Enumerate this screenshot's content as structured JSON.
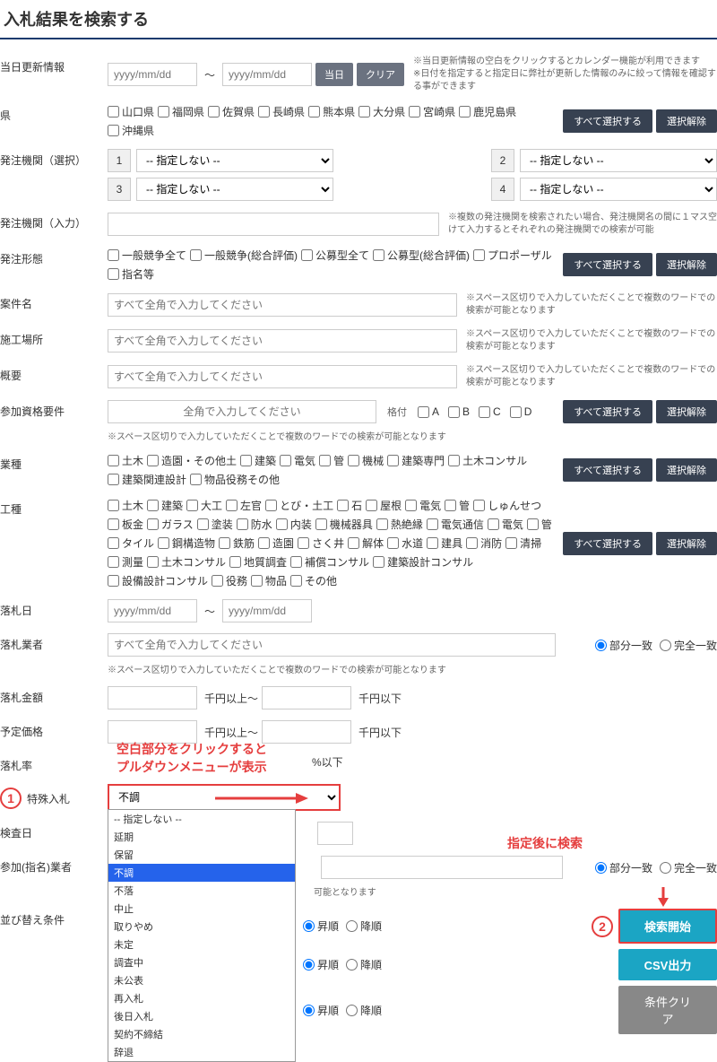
{
  "title": "入札結果を検索する",
  "rows": {
    "updateInfo": {
      "label": "当日更新情報",
      "placeholder": "yyyy/mm/dd",
      "btnToday": "当日",
      "btnClear": "クリア",
      "hint": "※当日更新情報の空白をクリックするとカレンダー機能が利用できます\n※日付を指定すると指定日に弊社が更新した情報のみに絞って情報を確認する事ができます"
    },
    "pref": {
      "label": "県",
      "options": [
        "山口県",
        "福岡県",
        "佐賀県",
        "長崎県",
        "熊本県",
        "大分県",
        "宮崎県",
        "鹿児島県",
        "沖縄県"
      ],
      "btnAll": "すべて選択する",
      "btnClear": "選択解除"
    },
    "agencySel": {
      "label": "発注機関（選択）",
      "placeholder": "-- 指定しない --"
    },
    "agencyInput": {
      "label": "発注機関（入力）",
      "hint": "※複数の発注機関を検索されたい場合、発注機関名の間に１マス空けて入力するとそれぞれの発注機関での検索が可能"
    },
    "orderType": {
      "label": "発注形態",
      "options": [
        "一般競争全て",
        "一般競争(総合評価)",
        "公募型全て",
        "公募型(総合評価)",
        "プロポーザル",
        "指名等"
      ],
      "btnAll": "すべて選択する",
      "btnClear": "選択解除"
    },
    "name": {
      "label": "案件名",
      "placeholder": "すべて全角で入力してください",
      "hint": "※スペース区切りで入力していただくことで複数のワードでの検索が可能となります"
    },
    "place": {
      "label": "施工場所",
      "placeholder": "すべて全角で入力してください",
      "hint": "※スペース区切りで入力していただくことで複数のワードでの検索が可能となります"
    },
    "summary": {
      "label": "概要",
      "placeholder": "すべて全角で入力してください",
      "hint": "※スペース区切りで入力していただくことで複数のワードでの検索が可能となります"
    },
    "qual": {
      "label": "参加資格要件",
      "placeholder": "全角で入力してください",
      "gradeLabel": "格付",
      "grades": [
        "A",
        "B",
        "C",
        "D"
      ],
      "btnAll": "すべて選択する",
      "btnClear": "選択解除",
      "note": "※スペース区切りで入力していただくことで複数のワードでの検索が可能となります"
    },
    "industry": {
      "label": "業種",
      "options": [
        "土木",
        "造園・その他土",
        "建築",
        "電気",
        "管",
        "機械",
        "建築専門",
        "土木コンサル",
        "建築関連設計",
        "物品役務その他"
      ],
      "btnAll": "すべて選択する",
      "btnClear": "選択解除"
    },
    "workType": {
      "label": "工種",
      "options": [
        "土木",
        "建築",
        "大工",
        "左官",
        "とび・土工",
        "石",
        "屋根",
        "電気",
        "管",
        "しゅんせつ",
        "板金",
        "ガラス",
        "塗装",
        "防水",
        "内装",
        "機械器具",
        "熱絶縁",
        "電気通信",
        "電気",
        "管",
        "タイル",
        "鋼構造物",
        "鉄筋",
        "造園",
        "さく井",
        "解体",
        "水道",
        "建具",
        "消防",
        "清掃",
        "測量",
        "土木コンサル",
        "地質調査",
        "補償コンサル",
        "建築設計コンサル",
        "設備設計コンサル",
        "役務",
        "物品",
        "その他"
      ],
      "btnAll": "すべて選択する",
      "btnClear": "選択解除"
    },
    "bidDate": {
      "label": "落札日",
      "placeholder": "yyyy/mm/dd"
    },
    "bidder": {
      "label": "落札業者",
      "placeholder": "すべて全角で入力してください",
      "radioPartial": "部分一致",
      "radioExact": "完全一致",
      "note": "※スペース区切りで入力していただくことで複数のワードでの検索が可能となります"
    },
    "bidAmount": {
      "label": "落札金額",
      "from": "千円以上～",
      "to": "千円以下"
    },
    "budget": {
      "label": "予定価格",
      "from": "千円以上～",
      "to": "千円以下"
    },
    "bidRate": {
      "label": "落札率",
      "suffix": "%以下"
    },
    "special": {
      "label": "特殊入札",
      "selected": "不調",
      "options": [
        "-- 指定しない --",
        "延期",
        "保留",
        "不調",
        "不落",
        "中止",
        "取りやめ",
        "未定",
        "調査中",
        "未公表",
        "再入札",
        "後日入札",
        "契約不締結",
        "辞退"
      ]
    },
    "inspect": {
      "label": "検査日"
    },
    "partic": {
      "label": "参加(指名)業者",
      "radioPartial": "部分一致",
      "radioExact": "完全一致",
      "note": "可能となります"
    },
    "sort": {
      "label": "並び替え条件",
      "asc": "昇順",
      "desc": "降順",
      "placeholder": "-- 指定しない --"
    }
  },
  "actions": {
    "search": "検索開始",
    "csv": "CSV出力",
    "clear": "条件クリア"
  },
  "annotations": {
    "dropdown": "空白部分をクリックすると\nプルダウンメニューが表示",
    "afterSearch": "指定後に検索"
  }
}
